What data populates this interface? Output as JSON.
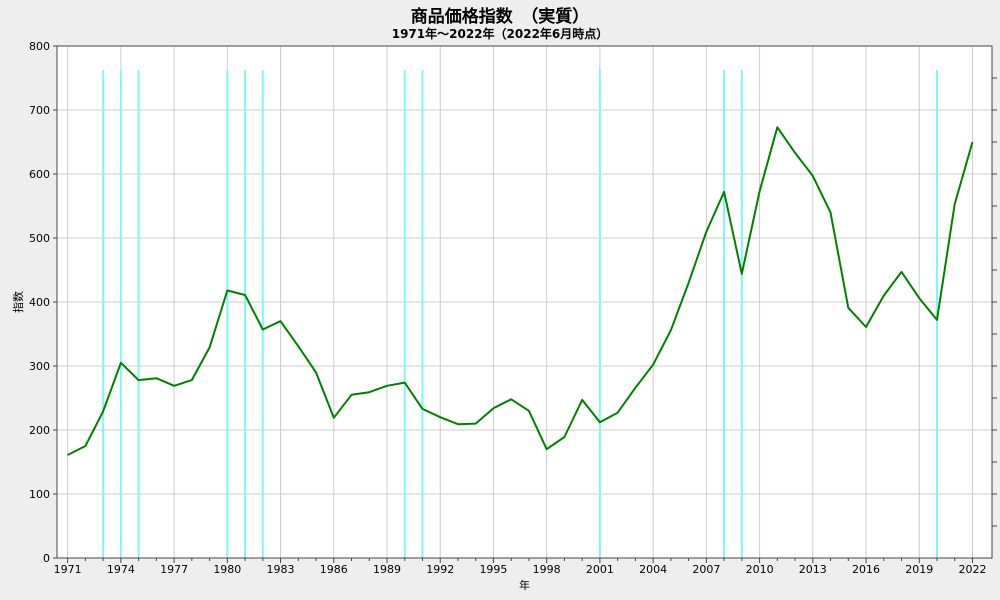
{
  "colors": {
    "background": "#eeeeee",
    "plot_background": "#ffffff",
    "grid": "#cccccc",
    "series_line": "#008000",
    "marker_lines": "#7ff7f7",
    "axis": "#444444"
  },
  "chart_data": {
    "type": "line",
    "title": "商品価格指数　（実質）",
    "subtitle": "1971年～2022年（2022年6月時点）",
    "xlabel": "年",
    "ylabel": "指数",
    "xlim": [
      1970.4,
      2023.1
    ],
    "ylim": [
      0,
      800
    ],
    "grid": true,
    "y_ticks": [
      0,
      100,
      200,
      300,
      400,
      500,
      600,
      700,
      800
    ],
    "x_ticks": [
      1971,
      1974,
      1977,
      1980,
      1983,
      1986,
      1989,
      1992,
      1995,
      1998,
      2001,
      2004,
      2007,
      2010,
      2013,
      2016,
      2019,
      2022
    ],
    "x_minor_ticks": [
      1972,
      1973,
      1975,
      1976,
      1978,
      1979,
      1981,
      1982,
      1984,
      1985,
      1987,
      1988,
      1990,
      1991,
      1993,
      1994,
      1996,
      1997,
      1999,
      2000,
      2002,
      2003,
      2005,
      2006,
      2008,
      2009,
      2011,
      2012,
      2014,
      2015,
      2017,
      2018,
      2020,
      2021
    ],
    "series": [
      {
        "x": [
          1971,
          1972,
          1973,
          1974,
          1975,
          1976,
          1977,
          1978,
          1979,
          1980,
          1981,
          1982,
          1983,
          1984,
          1985,
          1986,
          1987,
          1988,
          1989,
          1990,
          1991,
          1992,
          1993,
          1994,
          1995,
          1996,
          1997,
          1998,
          1999,
          2000,
          2001,
          2002,
          2003,
          2004,
          2005,
          2006,
          2007,
          2008,
          2009,
          2010,
          2011,
          2012,
          2013,
          2014,
          2015,
          2016,
          2017,
          2018,
          2019,
          2020,
          2021,
          2022
        ],
        "values": [
          161,
          175,
          229,
          305,
          278,
          281,
          269,
          278,
          329,
          418,
          411,
          357,
          370,
          331,
          290,
          219,
          255,
          259,
          269,
          274,
          233,
          220,
          209,
          210,
          234,
          248,
          230,
          170,
          189,
          247,
          212,
          227,
          266,
          302,
          356,
          430,
          510,
          572,
          444,
          573,
          673,
          633,
          597,
          540,
          391,
          361,
          410,
          447,
          406,
          372,
          553,
          650
        ]
      }
    ],
    "vertical_markers": [
      1973,
      1974,
      1975,
      1980,
      1981,
      1982,
      1990,
      1991,
      2001,
      2008,
      2009,
      2020
    ]
  }
}
